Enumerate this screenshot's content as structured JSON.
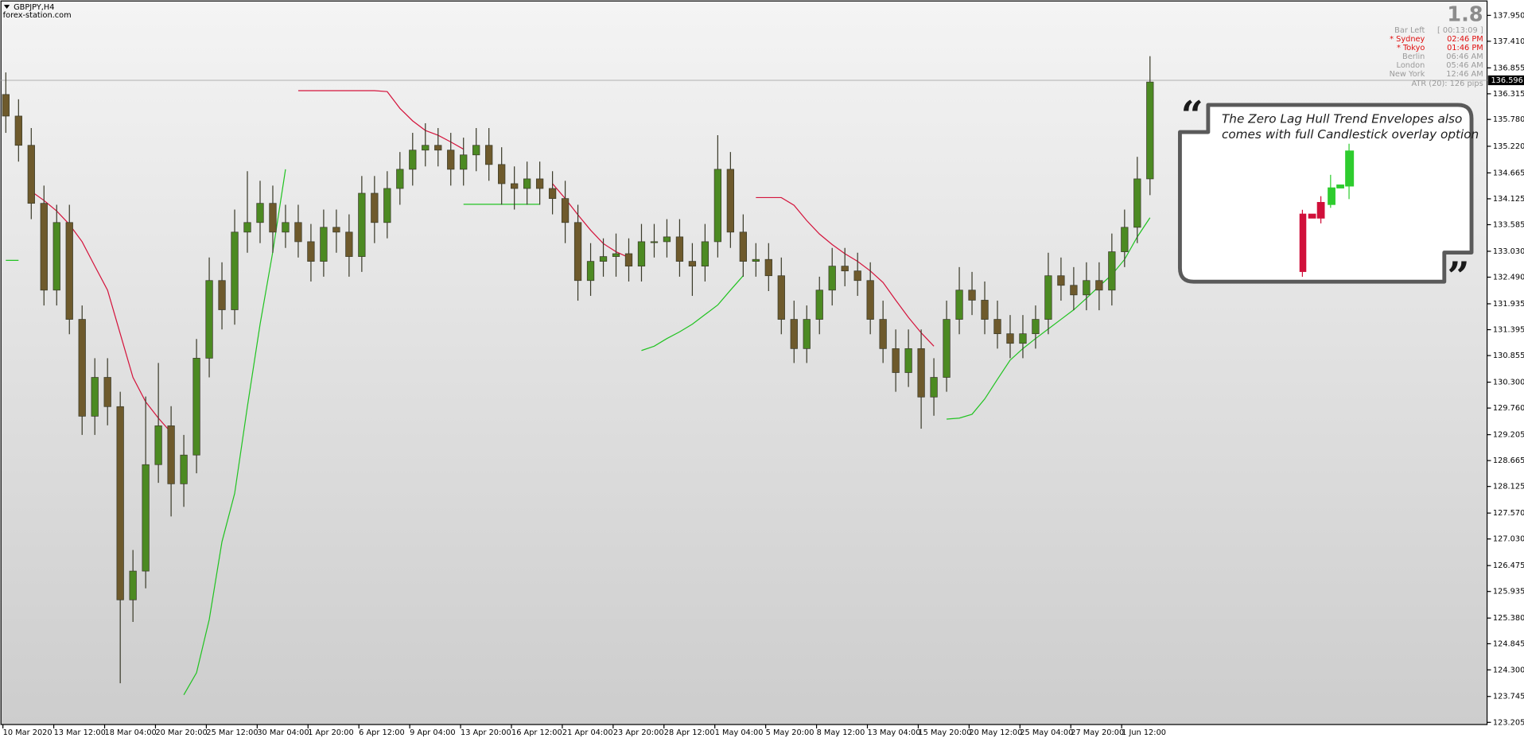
{
  "chart_data": {
    "type": "candlestick",
    "title": "GBPJPY,H4",
    "subtitle": "forex-station.com",
    "categories": [
      "10 Mar 2020",
      null,
      null,
      null,
      "13 Mar 12:00",
      null,
      null,
      null,
      "18 Mar 04:00",
      null,
      null,
      null,
      "20 Mar 20:00",
      null,
      null,
      null,
      "25 Mar 12:00",
      null,
      null,
      null,
      "30 Mar 04:00",
      null,
      null,
      null,
      "1 Apr 20:00",
      null,
      null,
      null,
      "6 Apr 12:00",
      null,
      null,
      null,
      "9 Apr 04:00",
      null,
      null,
      null,
      "13 Apr 20:00",
      null,
      null,
      null,
      "16 Apr 12:00",
      null,
      null,
      null,
      "21 Apr 04:00",
      null,
      null,
      null,
      "23 Apr 20:00",
      null,
      null,
      null,
      "28 Apr 12:00",
      null,
      null,
      null,
      "1 May 04:00",
      null,
      null,
      null,
      "5 May 20:00",
      null,
      null,
      null,
      "8 May 12:00",
      null,
      null,
      null,
      "13 May 04:00",
      null,
      null,
      null,
      "15 May 20:00",
      null,
      null,
      null,
      "20 May 12:00",
      null,
      null,
      null,
      "25 May 04:00",
      null,
      null,
      null,
      "27 May 20:00",
      null,
      null,
      null,
      "1 Jun 12:00",
      null,
      null
    ],
    "ohlc": [
      [
        136.3,
        136.76,
        135.5,
        135.85
      ],
      [
        135.85,
        136.2,
        134.9,
        135.24
      ],
      [
        135.24,
        135.6,
        133.7,
        134.03
      ],
      [
        134.03,
        134.4,
        131.9,
        132.22
      ],
      [
        132.22,
        134.0,
        131.9,
        133.63
      ],
      [
        133.63,
        134.0,
        131.3,
        131.61
      ],
      [
        131.61,
        131.9,
        129.2,
        129.59
      ],
      [
        129.59,
        130.8,
        129.2,
        130.4
      ],
      [
        130.4,
        130.8,
        129.4,
        129.79
      ],
      [
        129.79,
        130.1,
        124.02,
        125.76
      ],
      [
        125.76,
        126.8,
        125.3,
        126.36
      ],
      [
        126.36,
        130.0,
        126.0,
        128.58
      ],
      [
        128.58,
        130.7,
        128.2,
        129.39
      ],
      [
        129.39,
        129.8,
        127.5,
        128.18
      ],
      [
        128.18,
        129.2,
        127.7,
        128.78
      ],
      [
        128.78,
        131.2,
        128.4,
        130.8
      ],
      [
        130.8,
        132.9,
        130.4,
        132.42
      ],
      [
        132.42,
        132.8,
        131.4,
        131.81
      ],
      [
        131.81,
        133.9,
        131.5,
        133.43
      ],
      [
        133.43,
        134.7,
        133.0,
        133.63
      ],
      [
        133.63,
        134.5,
        133.2,
        134.03
      ],
      [
        134.03,
        134.4,
        133.0,
        133.43
      ],
      [
        133.43,
        134.0,
        133.1,
        133.63
      ],
      [
        133.63,
        134.0,
        132.9,
        133.23
      ],
      [
        133.23,
        133.6,
        132.4,
        132.82
      ],
      [
        132.82,
        133.9,
        132.5,
        133.53
      ],
      [
        133.53,
        133.9,
        133.0,
        133.43
      ],
      [
        133.43,
        133.8,
        132.5,
        132.92
      ],
      [
        132.92,
        134.6,
        132.6,
        134.24
      ],
      [
        134.24,
        134.6,
        133.2,
        133.63
      ],
      [
        133.63,
        134.7,
        133.3,
        134.34
      ],
      [
        134.34,
        135.1,
        134.0,
        134.74
      ],
      [
        134.74,
        135.5,
        134.4,
        135.14
      ],
      [
        135.14,
        135.7,
        134.8,
        135.24
      ],
      [
        135.24,
        135.6,
        134.8,
        135.14
      ],
      [
        135.14,
        135.5,
        134.4,
        134.74
      ],
      [
        134.74,
        135.4,
        134.4,
        135.04
      ],
      [
        135.04,
        135.6,
        134.7,
        135.24
      ],
      [
        135.24,
        135.6,
        134.5,
        134.84
      ],
      [
        134.84,
        135.2,
        134.0,
        134.44
      ],
      [
        134.44,
        134.8,
        133.9,
        134.34
      ],
      [
        134.34,
        134.9,
        134.0,
        134.54
      ],
      [
        134.54,
        134.9,
        134.0,
        134.34
      ],
      [
        134.34,
        134.7,
        133.8,
        134.13
      ],
      [
        134.13,
        134.5,
        133.2,
        133.63
      ],
      [
        133.63,
        134.0,
        132.0,
        132.42
      ],
      [
        132.42,
        133.2,
        132.1,
        132.82
      ],
      [
        132.82,
        133.3,
        132.5,
        132.92
      ],
      [
        132.92,
        133.4,
        132.5,
        132.98
      ],
      [
        132.98,
        133.3,
        132.4,
        132.72
      ],
      [
        132.72,
        133.6,
        132.4,
        133.23
      ],
      [
        133.23,
        133.6,
        132.9,
        133.23
      ],
      [
        133.23,
        133.7,
        132.9,
        133.33
      ],
      [
        133.33,
        133.7,
        132.5,
        132.82
      ],
      [
        132.82,
        133.2,
        132.1,
        132.72
      ],
      [
        132.72,
        133.6,
        132.4,
        133.23
      ],
      [
        133.23,
        135.45,
        132.9,
        134.74
      ],
      [
        134.74,
        135.1,
        133.1,
        133.43
      ],
      [
        133.43,
        133.8,
        132.5,
        132.82
      ],
      [
        132.82,
        133.2,
        132.5,
        132.86
      ],
      [
        132.86,
        133.2,
        132.2,
        132.52
      ],
      [
        132.52,
        132.9,
        131.3,
        131.61
      ],
      [
        131.61,
        132.0,
        130.7,
        131.0
      ],
      [
        131.0,
        131.9,
        130.7,
        131.61
      ],
      [
        131.61,
        132.5,
        131.3,
        132.22
      ],
      [
        132.22,
        133.1,
        131.9,
        132.72
      ],
      [
        132.72,
        133.1,
        132.3,
        132.62
      ],
      [
        132.62,
        133.0,
        132.1,
        132.42
      ],
      [
        132.42,
        132.8,
        131.3,
        131.61
      ],
      [
        131.61,
        132.0,
        130.7,
        131.0
      ],
      [
        131.0,
        131.4,
        130.1,
        130.5
      ],
      [
        130.5,
        131.4,
        130.2,
        131.0
      ],
      [
        131.0,
        131.4,
        129.33,
        129.99
      ],
      [
        129.99,
        130.8,
        129.6,
        130.4
      ],
      [
        130.4,
        132.0,
        130.1,
        131.61
      ],
      [
        131.61,
        132.7,
        131.3,
        132.22
      ],
      [
        132.22,
        132.6,
        131.7,
        132.01
      ],
      [
        132.01,
        132.4,
        131.3,
        131.61
      ],
      [
        131.61,
        132.0,
        131.0,
        131.31
      ],
      [
        131.31,
        131.7,
        130.8,
        131.11
      ],
      [
        131.11,
        131.7,
        130.8,
        131.31
      ],
      [
        131.31,
        131.9,
        131.0,
        131.61
      ],
      [
        131.61,
        133.0,
        131.3,
        132.52
      ],
      [
        132.52,
        132.9,
        132.0,
        132.32
      ],
      [
        132.32,
        132.7,
        131.8,
        132.12
      ],
      [
        132.12,
        132.8,
        131.8,
        132.42
      ],
      [
        132.42,
        132.8,
        131.8,
        132.22
      ],
      [
        132.22,
        133.4,
        131.9,
        133.02
      ],
      [
        133.02,
        133.9,
        132.7,
        133.53
      ],
      [
        133.53,
        135.0,
        133.2,
        134.54
      ],
      [
        134.54,
        137.1,
        134.2,
        136.56
      ]
    ],
    "up_color": "#4c8a22",
    "down_color": "#6e5a2c",
    "wick_color": "#3b3b2a",
    "envelopes": [
      {
        "color": "#d4143c",
        "values": [
          null,
          null,
          134.28,
          134.09,
          133.87,
          133.59,
          133.23,
          132.72,
          132.22,
          131.31,
          130.4,
          129.89,
          129.55,
          129.25,
          null,
          null,
          null,
          null,
          null,
          null,
          null,
          null,
          null,
          136.38,
          136.38,
          136.38,
          136.38,
          136.38,
          136.38,
          136.38,
          136.36,
          136.01,
          135.75,
          135.55,
          135.45,
          135.31,
          135.16,
          null,
          null,
          null,
          null,
          null,
          null,
          134.44,
          134.13,
          133.79,
          133.47,
          133.19,
          133.02,
          132.9,
          null,
          null,
          null,
          null,
          null,
          null,
          null,
          null,
          null,
          134.15,
          134.15,
          134.15,
          133.99,
          133.67,
          133.39,
          133.17,
          132.98,
          132.82,
          132.62,
          132.38,
          132.01,
          131.65,
          131.33,
          131.05,
          null,
          null,
          null,
          null,
          null,
          null,
          null,
          null,
          null,
          null,
          null,
          null,
          null,
          null,
          null,
          null,
          null
        ]
      },
      {
        "color": "#22c322",
        "values": [
          132.84,
          132.84,
          null,
          null,
          null,
          null,
          null,
          null,
          null,
          null,
          null,
          null,
          null,
          null,
          123.78,
          124.24,
          125.35,
          126.97,
          127.98,
          129.79,
          131.51,
          133.02,
          134.74,
          null,
          null,
          null,
          null,
          null,
          null,
          null,
          null,
          null,
          null,
          null,
          null,
          null,
          134.01,
          134.01,
          134.01,
          134.01,
          134.01,
          134.01,
          134.01,
          null,
          null,
          null,
          null,
          null,
          null,
          null,
          130.96,
          131.05,
          131.21,
          131.35,
          131.51,
          131.71,
          131.91,
          132.22,
          132.52,
          null,
          null,
          null,
          null,
          null,
          null,
          null,
          null,
          null,
          null,
          null,
          null,
          null,
          null,
          null,
          129.53,
          129.55,
          129.63,
          129.95,
          130.36,
          130.76,
          131.0,
          131.21,
          131.41,
          131.61,
          131.81,
          132.05,
          132.3,
          132.54,
          132.86,
          133.33,
          133.73
        ]
      }
    ],
    "current_price": 136.596,
    "ylim": [
      123.16,
      138.21
    ],
    "yticks": [
      {
        "value": 137.95,
        "label": "137.950"
      },
      {
        "value": 137.41,
        "label": "137.410"
      },
      136.855,
      136.315,
      {
        "value": 135.78,
        "label": "135.780"
      },
      {
        "value": 135.22,
        "label": "135.220"
      },
      134.665,
      134.125,
      133.585,
      {
        "value": 133.03,
        "label": "133.030"
      },
      {
        "value": 132.49,
        "label": "132.490"
      },
      131.935,
      131.395,
      130.855,
      {
        "value": 130.3,
        "label": "130.300"
      },
      {
        "value": 129.76,
        "label": "129.760"
      },
      129.205,
      128.665,
      128.125,
      {
        "value": 127.57,
        "label": "127.570"
      },
      {
        "value": 127.03,
        "label": "127.030"
      },
      126.475,
      125.935,
      {
        "value": 125.38,
        "label": "125.380"
      },
      124.845,
      {
        "value": 124.3,
        "label": "124.300"
      },
      123.745,
      123.205
    ]
  },
  "info_panel": {
    "big_value": 1.8,
    "rows": [
      {
        "label": "Bar Left",
        "value": "[ 00:13:09 ]",
        "color": "#9a9a9a"
      },
      {
        "label": "* Sydney",
        "value": "02:46 PM",
        "color": "#e01010"
      },
      {
        "label": "* Tokyo",
        "value": "01:46 PM",
        "color": "#e01010"
      },
      {
        "label": "Berlin",
        "value": "06:46 AM",
        "color": "#9a9a9a"
      },
      {
        "label": "London",
        "value": "05:46 AM",
        "color": "#9a9a9a"
      },
      {
        "label": "New York",
        "value": "12:46 AM",
        "color": "#9a9a9a"
      }
    ],
    "atr": "ATR (20): 126 pips"
  },
  "callout": {
    "lines": [
      "The Zero Lag Hull Trend Envelopes also",
      "comes with full Candlestick overlay option"
    ]
  }
}
